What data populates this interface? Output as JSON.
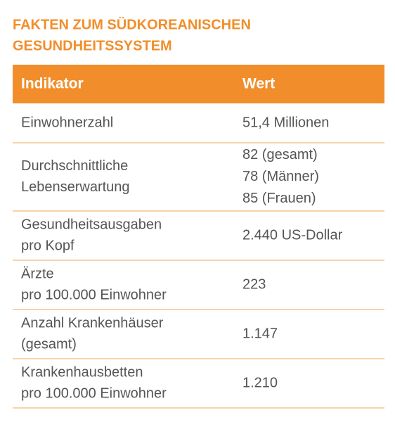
{
  "title": [
    "FAKTEN ZUM SÜDKOREANISCHEN",
    "GESUNDHEITSSYSTEM"
  ],
  "table": {
    "header": [
      "Indikator",
      "Wert"
    ],
    "rows": [
      [
        [
          "Einwohnerzahl"
        ],
        [
          "51,4 Millionen"
        ]
      ],
      [
        [
          "Durchschnittliche",
          "Lebenserwartung"
        ],
        [
          "82 (gesamt)",
          "78 (Männer)",
          "85 (Frauen)"
        ]
      ],
      [
        [
          "Gesundheitsausgaben",
          "pro Kopf"
        ],
        [
          "2.440 US-Dollar"
        ]
      ],
      [
        [
          "Ärzte",
          "pro 100.000 Einwohner"
        ],
        [
          "223"
        ]
      ],
      [
        [
          "Anzahl Krankenhäuser",
          "(gesamt)"
        ],
        [
          "1.147"
        ]
      ],
      [
        [
          "Krankenhausbetten",
          "pro 100.000 Einwohner"
        ],
        [
          "1.210"
        ]
      ]
    ]
  }
}
